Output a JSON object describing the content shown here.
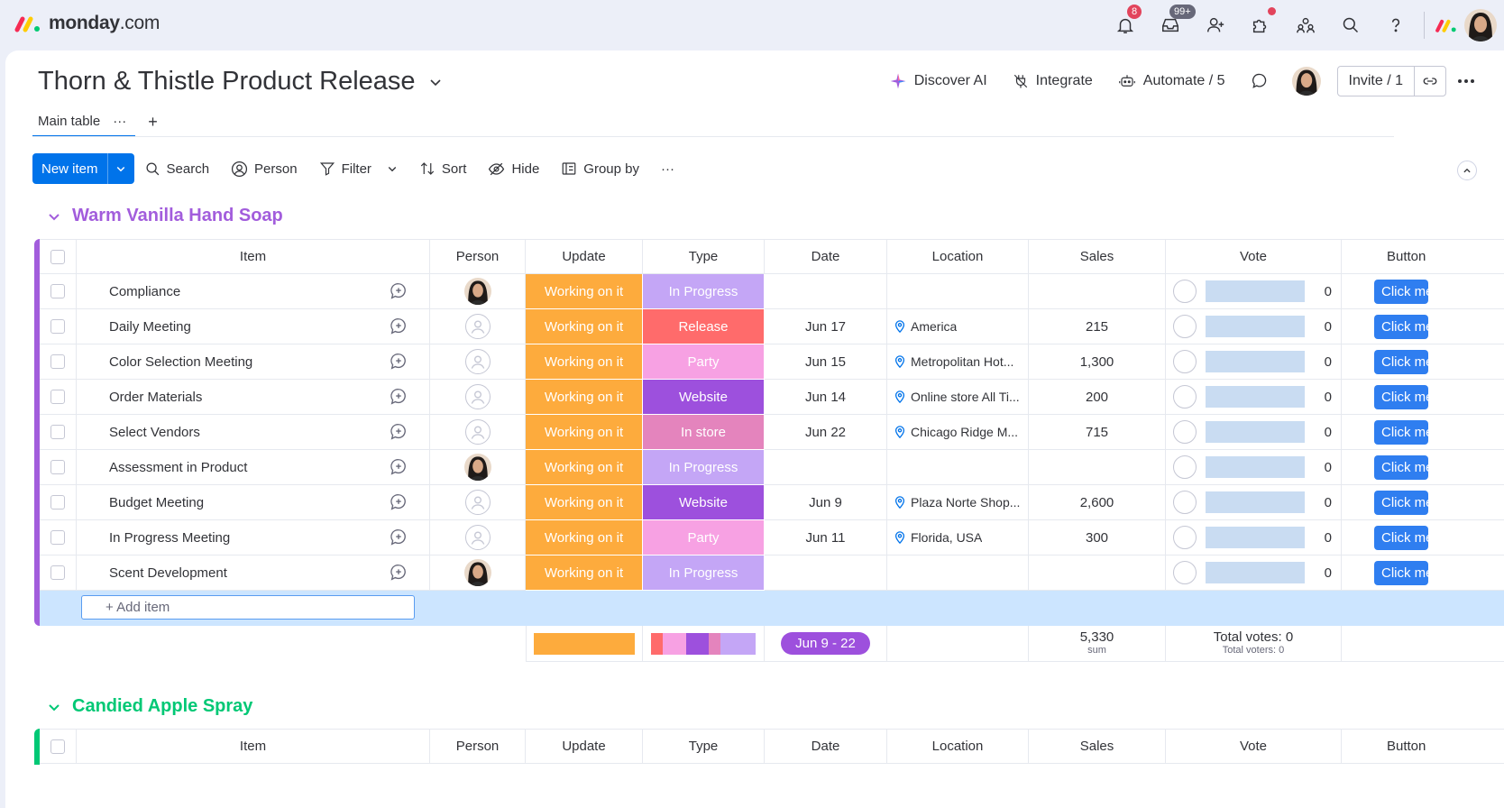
{
  "app": {
    "logo_text_bold": "monday",
    "logo_text_suffix": ".com"
  },
  "topbar": {
    "notifications_badge": "8",
    "inbox_badge": "99+"
  },
  "board": {
    "title": "Thorn & Thistle Product Release",
    "actions": {
      "discover_ai": "Discover AI",
      "integrate": "Integrate",
      "automate": "Automate / 5",
      "invite": "Invite / 1"
    }
  },
  "tabs": {
    "main": "Main table",
    "main_more": "···",
    "add": "+"
  },
  "toolbar": {
    "new_item": "New item",
    "search": "Search",
    "person": "Person",
    "filter": "Filter",
    "sort": "Sort",
    "hide": "Hide",
    "group_by": "Group by",
    "more": "···"
  },
  "columns": {
    "item": "Item",
    "person": "Person",
    "update": "Update",
    "type": "Type",
    "date": "Date",
    "location": "Location",
    "sales": "Sales",
    "vote": "Vote",
    "button": "Button"
  },
  "groups": [
    {
      "title": "Warm Vanilla Hand Soap",
      "color": "#a25ddc",
      "rows": [
        {
          "item": "Compliance",
          "person": "photo",
          "update": "Working on it",
          "type": "In Progress",
          "date": "",
          "location": "",
          "sales": "",
          "votes": "0",
          "button": "Click me"
        },
        {
          "item": "Daily Meeting",
          "person": "empty",
          "update": "Working on it",
          "type": "Release",
          "date": "Jun 17",
          "location": "America",
          "sales": "215",
          "votes": "0",
          "button": "Click me"
        },
        {
          "item": "Color Selection Meeting",
          "person": "empty",
          "update": "Working on it",
          "type": "Party",
          "date": "Jun 15",
          "location": "Metropolitan Hot...",
          "sales": "1,300",
          "votes": "0",
          "button": "Click me"
        },
        {
          "item": "Order Materials",
          "person": "empty",
          "update": "Working on it",
          "type": "Website",
          "date": "Jun 14",
          "location": "Online store All Ti...",
          "sales": "200",
          "votes": "0",
          "button": "Click me"
        },
        {
          "item": "Select Vendors",
          "person": "empty",
          "update": "Working on it",
          "type": "In store",
          "date": "Jun 22",
          "location": "Chicago Ridge M...",
          "sales": "715",
          "votes": "0",
          "button": "Click me"
        },
        {
          "item": "Assessment in Product",
          "person": "photo",
          "update": "Working on it",
          "type": "In Progress",
          "date": "",
          "location": "",
          "sales": "",
          "votes": "0",
          "button": "Click me"
        },
        {
          "item": "Budget Meeting",
          "person": "empty",
          "update": "Working on it",
          "type": "Website",
          "date": "Jun 9",
          "location": "Plaza Norte Shop...",
          "sales": "2,600",
          "votes": "0",
          "button": "Click me"
        },
        {
          "item": "In Progress Meeting",
          "person": "empty",
          "update": "Working on it",
          "type": "Party",
          "date": "Jun 11",
          "location": "Florida, USA",
          "sales": "300",
          "votes": "0",
          "button": "Click me"
        },
        {
          "item": "Scent Development",
          "person": "photo",
          "update": "Working on it",
          "type": "In Progress",
          "date": "",
          "location": "",
          "sales": "",
          "votes": "0",
          "button": "Click me"
        }
      ],
      "add_item": "+ Add item",
      "summary": {
        "date_range": "Jun 9 - 22",
        "sales_sum": "5,330",
        "sales_sum_label": "sum",
        "total_votes": "Total votes: 0",
        "total_voters": "Total voters: 0"
      }
    },
    {
      "title": "Candied Apple Spray",
      "color": "#00c875"
    }
  ],
  "type_colors": {
    "In Progress": "#c4a6f6",
    "Release": "#ff6b6b",
    "Party": "#f7a1e3",
    "Website": "#9d50dd",
    "In store": "#e484bd"
  },
  "update_color": "#fdab3d"
}
